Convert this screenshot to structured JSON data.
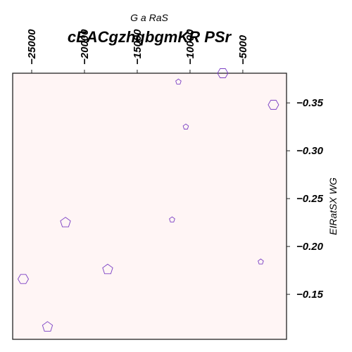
{
  "chart_data": {
    "type": "scatter",
    "title": "cEACgzhqbgmKR PSr",
    "xlabel": "G  a RaS",
    "ylabel": "EIRatSX WG",
    "xlim": [
      -26800,
      -860
    ],
    "ylim": [
      -0.381,
      -0.103
    ],
    "x_ticks": [
      -25000,
      -20000,
      -15000,
      -10000,
      -5000
    ],
    "y_ticks": [
      -0.15,
      -0.2,
      -0.25,
      -0.3,
      -0.35
    ],
    "x_axis_position": "top",
    "y_axis_position": "right",
    "grid": false,
    "legend": "none",
    "marker_color": "#7b3fc4",
    "background_color": "#fff5f5",
    "points": [
      {
        "x": -23500,
        "y": -0.116,
        "shape": "pentagon",
        "size": 7.5
      },
      {
        "x": -25800,
        "y": -0.166,
        "shape": "hexagon",
        "size": 7.5
      },
      {
        "x": -17800,
        "y": -0.176,
        "shape": "pentagon",
        "size": 7.5
      },
      {
        "x": -21800,
        "y": -0.225,
        "shape": "pentagon",
        "size": 7.5
      },
      {
        "x": -11700,
        "y": -0.228,
        "shape": "pentagon",
        "size": 4
      },
      {
        "x": -3300,
        "y": -0.184,
        "shape": "pentagon",
        "size": 4
      },
      {
        "x": -10400,
        "y": -0.325,
        "shape": "pentagon",
        "size": 4
      },
      {
        "x": -11100,
        "y": -0.372,
        "shape": "pentagon",
        "size": 4
      },
      {
        "x": -6900,
        "y": -0.381,
        "shape": "hexagon",
        "size": 7.5
      },
      {
        "x": -2100,
        "y": -0.348,
        "shape": "hexagon",
        "size": 7.5
      }
    ]
  }
}
